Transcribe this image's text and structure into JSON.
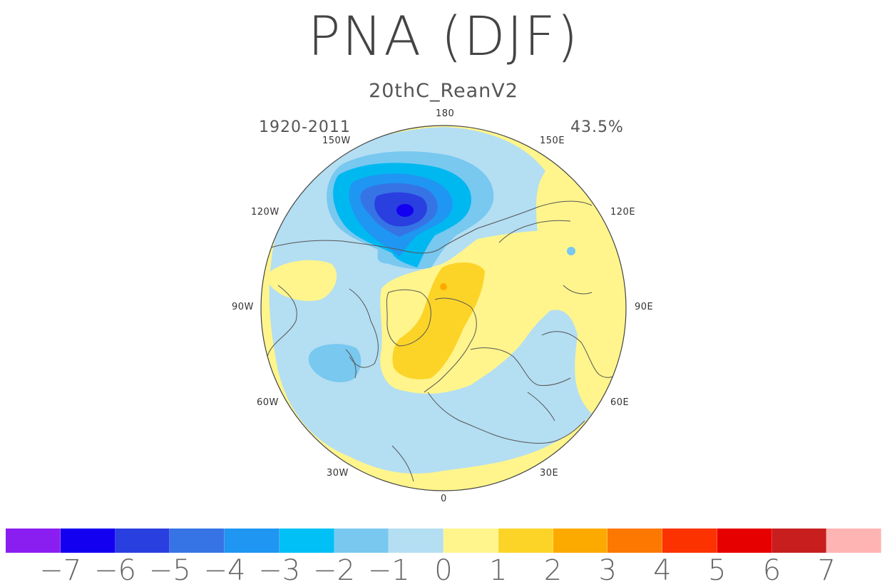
{
  "title": "PNA (DJF)",
  "subtitle": "20thC_ReanV2",
  "period": "1920-2011",
  "variance_explained": "43.5%",
  "longitude_labels": {
    "lon_180": "180",
    "lon_150w": "150W",
    "lon_150e": "150E",
    "lon_120w": "120W",
    "lon_120e": "120E",
    "lon_90w": "90W",
    "lon_90e": "90E",
    "lon_60w": "60W",
    "lon_60e": "60E",
    "lon_30w": "30W",
    "lon_30e": "30E",
    "lon_0": "0"
  },
  "colorbar": {
    "tick_labels": [
      "-7",
      "-6",
      "-5",
      "-4",
      "-3",
      "-2",
      "-1",
      "0",
      "1",
      "2",
      "3",
      "4",
      "5",
      "6",
      "7"
    ],
    "colors": [
      "#8a1ef0",
      "#1400f0",
      "#2a3fe0",
      "#3674e6",
      "#1e96f2",
      "#00c0f5",
      "#78c8f0",
      "#b4def2",
      "#fff58c",
      "#fcd428",
      "#fcaa00",
      "#fc7800",
      "#fc3200",
      "#e60000",
      "#c81e1e",
      "#ffb4b4"
    ]
  },
  "map": {
    "projection": "north polar stereographic",
    "fill_colors": {
      "neg1": "#b4def2",
      "neg2": "#78c8f0",
      "neg3": "#00b8f0",
      "neg4": "#1e96f2",
      "neg5": "#3674e6",
      "neg6": "#2a3fe0",
      "neg7": "#1400f0",
      "pos1": "#fff58c",
      "pos2": "#fcd428",
      "pos3": "#fcaa00"
    }
  }
}
